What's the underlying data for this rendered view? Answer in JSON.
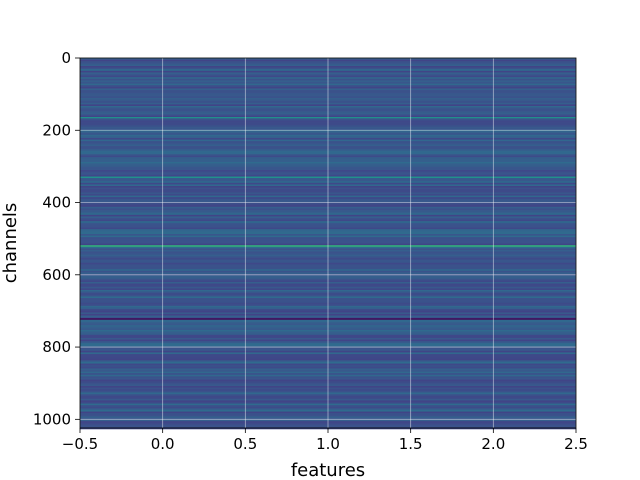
{
  "chart_data": {
    "type": "heatmap",
    "title": "",
    "xlabel": "features",
    "ylabel": "channels",
    "xlim": [
      -0.5,
      2.5
    ],
    "ylim": [
      1024,
      0
    ],
    "y_inverted": true,
    "grid": true,
    "grid_color": "#ffffff",
    "colormap": "viridis",
    "base_color": "#3b528b",
    "x_ticks": [
      "−0.5",
      "0.0",
      "0.5",
      "1.0",
      "1.5",
      "2.0",
      "2.5"
    ],
    "x_tick_values": [
      -0.5,
      0.0,
      0.5,
      1.0,
      1.5,
      2.0,
      2.5
    ],
    "y_ticks": [
      "0",
      "200",
      "400",
      "600",
      "800",
      "1000"
    ],
    "y_tick_values": [
      0,
      200,
      400,
      600,
      800,
      1000
    ],
    "n_channels": 1024,
    "n_features": 3,
    "highlight_rows": [
      {
        "channel": 165,
        "color": "#21918c"
      },
      {
        "channel": 330,
        "color": "#21918c"
      },
      {
        "channel": 520,
        "color": "#35b779"
      },
      {
        "channel": 722,
        "color": "#440154"
      }
    ]
  }
}
